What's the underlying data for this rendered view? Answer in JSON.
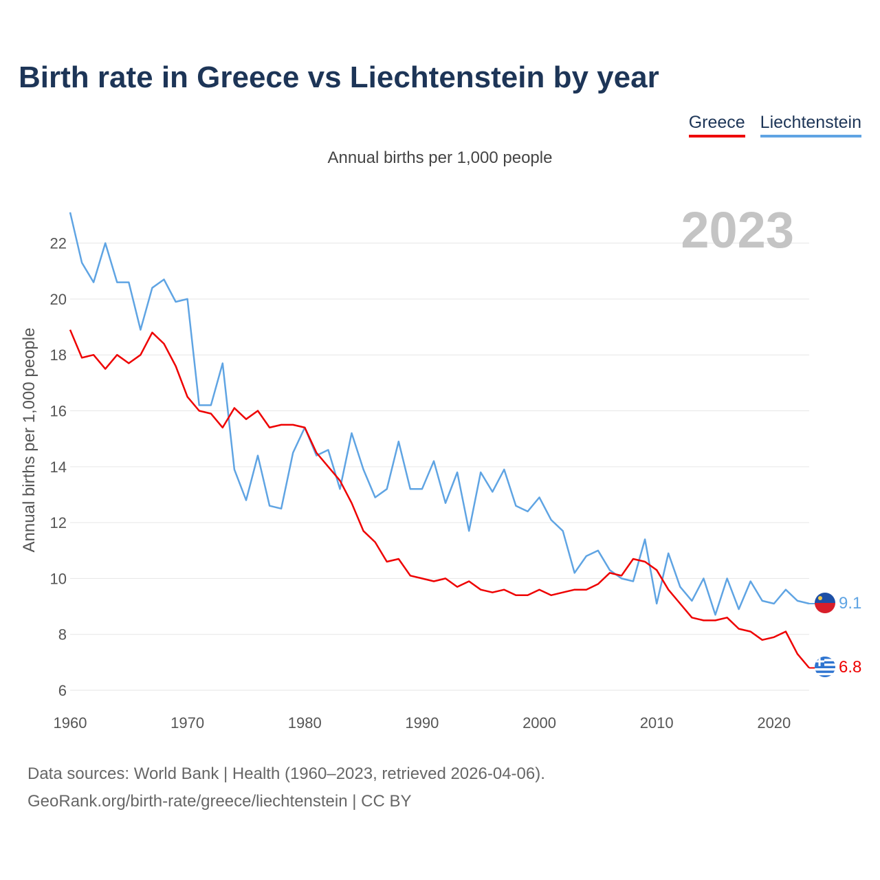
{
  "title": "Birth rate in Greece vs Liechtenstein by year",
  "legend": [
    {
      "label": "Greece",
      "color": "#ee0000"
    },
    {
      "label": "Liechtenstein",
      "color": "#5fa4e3"
    }
  ],
  "subtitle": "Annual births per 1,000 people",
  "year_watermark": "2023",
  "sources": {
    "line1": "Data sources: World Bank | Health (1960–2023, retrieved 2026-04-06).",
    "line2": "GeoRank.org/birth-rate/greece/liechtenstein | CC BY"
  },
  "chart_data": {
    "type": "line",
    "title": "Birth rate in Greece vs Liechtenstein by year",
    "xlabel": "",
    "ylabel": "Annual births per 1,000 people",
    "xlim": [
      1960,
      2023
    ],
    "ylim": [
      6,
      23
    ],
    "yticks": [
      6,
      8,
      10,
      12,
      14,
      16,
      18,
      20,
      22
    ],
    "xticks": [
      1960,
      1970,
      1980,
      1990,
      2000,
      2010,
      2020
    ],
    "grid": true,
    "legend_position": "top-right",
    "x": [
      1960,
      1961,
      1962,
      1963,
      1964,
      1965,
      1966,
      1967,
      1968,
      1969,
      1970,
      1971,
      1972,
      1973,
      1974,
      1975,
      1976,
      1977,
      1978,
      1979,
      1980,
      1981,
      1982,
      1983,
      1984,
      1985,
      1986,
      1987,
      1988,
      1989,
      1990,
      1991,
      1992,
      1993,
      1994,
      1995,
      1996,
      1997,
      1998,
      1999,
      2000,
      2001,
      2002,
      2003,
      2004,
      2005,
      2006,
      2007,
      2008,
      2009,
      2010,
      2011,
      2012,
      2013,
      2014,
      2015,
      2016,
      2017,
      2018,
      2019,
      2020,
      2021,
      2022,
      2023
    ],
    "series": [
      {
        "name": "Greece",
        "color": "#ee0000",
        "end_label": "6.8",
        "values": [
          18.9,
          17.9,
          18.0,
          17.5,
          18.0,
          17.7,
          18.0,
          18.8,
          18.4,
          17.6,
          16.5,
          16.0,
          15.9,
          15.4,
          16.1,
          15.7,
          16.0,
          15.4,
          15.5,
          15.5,
          15.4,
          14.5,
          14.0,
          13.5,
          12.7,
          11.7,
          11.3,
          10.6,
          10.7,
          10.1,
          10.0,
          9.9,
          10.0,
          9.7,
          9.9,
          9.6,
          9.5,
          9.6,
          9.4,
          9.4,
          9.6,
          9.4,
          9.5,
          9.6,
          9.6,
          9.8,
          10.2,
          10.1,
          10.7,
          10.6,
          10.3,
          9.6,
          9.1,
          8.6,
          8.5,
          8.5,
          8.6,
          8.2,
          8.1,
          7.8,
          7.9,
          8.1,
          7.3,
          6.8
        ]
      },
      {
        "name": "Liechtenstein",
        "color": "#5fa4e3",
        "end_label": "9.1",
        "values": [
          23.1,
          21.3,
          20.6,
          22.0,
          20.6,
          20.6,
          18.9,
          20.4,
          20.7,
          19.9,
          20.0,
          16.2,
          16.2,
          17.7,
          13.9,
          12.8,
          14.4,
          12.6,
          12.5,
          14.5,
          15.4,
          14.4,
          14.6,
          13.2,
          15.2,
          13.9,
          12.9,
          13.2,
          14.9,
          13.2,
          13.2,
          14.2,
          12.7,
          13.8,
          11.7,
          13.8,
          13.1,
          13.9,
          12.6,
          12.4,
          12.9,
          12.1,
          11.7,
          10.2,
          10.8,
          11.0,
          10.3,
          10.0,
          9.9,
          11.4,
          9.1,
          10.9,
          9.7,
          9.2,
          10.0,
          8.7,
          10.0,
          8.9,
          9.9,
          9.2,
          9.1,
          9.6,
          9.2,
          9.1
        ]
      }
    ]
  }
}
